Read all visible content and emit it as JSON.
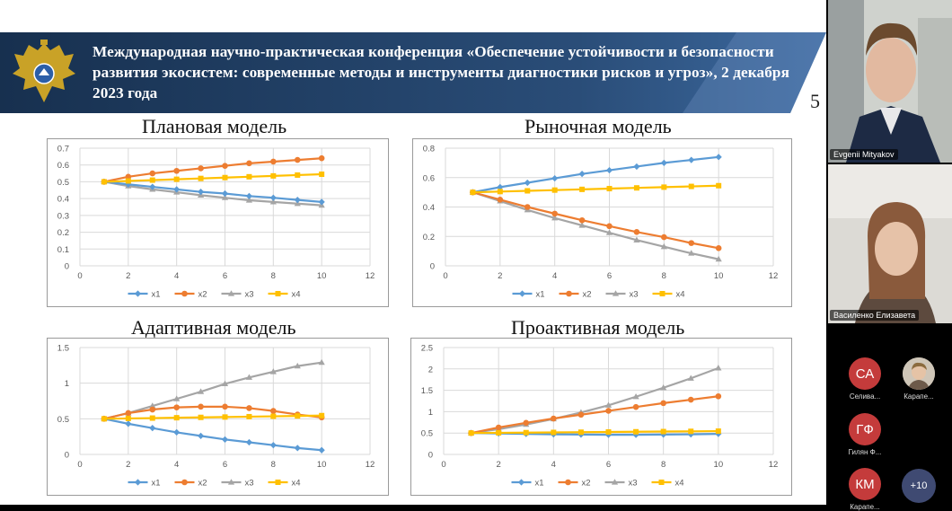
{
  "slide": {
    "title": "Международная научно-практическая конференция «Обеспечение устойчивости и безопасности развития экосистем: современные методы и инструменты диагностики рисков и угроз», 2 декабря 2023 года",
    "page_number": "5",
    "logo_icon": "double-headed-eagle-emblem",
    "colors": {
      "banner": "#1f3a5f",
      "x1": "#5b9bd5",
      "x2": "#ed7d31",
      "x3": "#a5a5a5",
      "x4": "#ffc000"
    }
  },
  "chart_data": [
    {
      "type": "line",
      "title": "Плановая модель",
      "x": [
        1,
        2,
        3,
        4,
        5,
        6,
        7,
        8,
        9,
        10
      ],
      "xlim": [
        0,
        12
      ],
      "xticks": [
        0,
        2,
        4,
        6,
        8,
        10,
        12
      ],
      "ylim": [
        0,
        0.7
      ],
      "yticks": [
        0,
        0.1,
        0.2,
        0.3,
        0.4,
        0.5,
        0.6,
        0.7
      ],
      "ytick_labels": [
        "0",
        "0.1",
        "0.2",
        "0.3",
        "0.4",
        "0.5",
        "0.6",
        "0.7"
      ],
      "grid": true,
      "legend": "bottom",
      "series": [
        {
          "name": "x1",
          "marker": "diamond",
          "values": [
            0.5,
            0.485,
            0.47,
            0.455,
            0.44,
            0.43,
            0.415,
            0.405,
            0.392,
            0.38
          ]
        },
        {
          "name": "x2",
          "marker": "circle",
          "values": [
            0.5,
            0.53,
            0.55,
            0.565,
            0.58,
            0.595,
            0.61,
            0.62,
            0.63,
            0.64
          ]
        },
        {
          "name": "x3",
          "marker": "triangle",
          "values": [
            0.5,
            0.475,
            0.455,
            0.438,
            0.42,
            0.405,
            0.39,
            0.38,
            0.37,
            0.36
          ]
        },
        {
          "name": "x4",
          "marker": "square",
          "values": [
            0.5,
            0.505,
            0.51,
            0.515,
            0.52,
            0.525,
            0.53,
            0.535,
            0.54,
            0.545
          ]
        }
      ]
    },
    {
      "type": "line",
      "title": "Рыночная модель",
      "x": [
        1,
        2,
        3,
        4,
        5,
        6,
        7,
        8,
        9,
        10
      ],
      "xlim": [
        0,
        12
      ],
      "xticks": [
        0,
        2,
        4,
        6,
        8,
        10,
        12
      ],
      "ylim": [
        0,
        0.8
      ],
      "yticks": [
        0,
        0.2,
        0.4,
        0.6,
        0.8
      ],
      "ytick_labels": [
        "0",
        "0.2",
        "0.4",
        "0.6",
        "0.8"
      ],
      "grid": true,
      "legend": "bottom",
      "series": [
        {
          "name": "x1",
          "marker": "diamond",
          "values": [
            0.5,
            0.535,
            0.565,
            0.595,
            0.625,
            0.65,
            0.675,
            0.7,
            0.72,
            0.74
          ]
        },
        {
          "name": "x2",
          "marker": "circle",
          "values": [
            0.5,
            0.45,
            0.4,
            0.355,
            0.31,
            0.27,
            0.23,
            0.195,
            0.155,
            0.12
          ]
        },
        {
          "name": "x3",
          "marker": "triangle",
          "values": [
            0.5,
            0.44,
            0.38,
            0.325,
            0.275,
            0.225,
            0.175,
            0.13,
            0.085,
            0.045
          ]
        },
        {
          "name": "x4",
          "marker": "square",
          "values": [
            0.5,
            0.505,
            0.51,
            0.515,
            0.52,
            0.525,
            0.53,
            0.535,
            0.54,
            0.545
          ]
        }
      ]
    },
    {
      "type": "line",
      "title": "Адаптивная модель",
      "x": [
        1,
        2,
        3,
        4,
        5,
        6,
        7,
        8,
        9,
        10
      ],
      "xlim": [
        0,
        12
      ],
      "xticks": [
        0,
        2,
        4,
        6,
        8,
        10,
        12
      ],
      "ylim": [
        0,
        1.5
      ],
      "yticks": [
        0,
        0.5,
        1,
        1.5
      ],
      "ytick_labels": [
        "0",
        "0.5",
        "1",
        "1.5"
      ],
      "grid": true,
      "legend": "bottom",
      "series": [
        {
          "name": "x1",
          "marker": "diamond",
          "values": [
            0.5,
            0.43,
            0.37,
            0.31,
            0.26,
            0.21,
            0.17,
            0.13,
            0.09,
            0.06
          ]
        },
        {
          "name": "x2",
          "marker": "circle",
          "values": [
            0.5,
            0.58,
            0.63,
            0.66,
            0.67,
            0.67,
            0.65,
            0.61,
            0.56,
            0.52
          ]
        },
        {
          "name": "x3",
          "marker": "triangle",
          "values": [
            0.5,
            0.58,
            0.68,
            0.78,
            0.88,
            0.99,
            1.08,
            1.16,
            1.24,
            1.29
          ]
        },
        {
          "name": "x4",
          "marker": "square",
          "values": [
            0.5,
            0.505,
            0.51,
            0.515,
            0.52,
            0.525,
            0.53,
            0.535,
            0.54,
            0.545
          ]
        }
      ]
    },
    {
      "type": "line",
      "title": "Проактивная модель",
      "x": [
        1,
        2,
        3,
        4,
        5,
        6,
        7,
        8,
        9,
        10
      ],
      "xlim": [
        0,
        12
      ],
      "xticks": [
        0,
        2,
        4,
        6,
        8,
        10,
        12
      ],
      "ylim": [
        0,
        2.5
      ],
      "yticks": [
        0,
        0.5,
        1,
        1.5,
        2,
        2.5
      ],
      "ytick_labels": [
        "0",
        "0.5",
        "1",
        "1.5",
        "2",
        "2.5"
      ],
      "grid": true,
      "legend": "bottom",
      "series": [
        {
          "name": "x1",
          "marker": "diamond",
          "values": [
            0.5,
            0.49,
            0.48,
            0.47,
            0.465,
            0.46,
            0.46,
            0.465,
            0.47,
            0.48
          ]
        },
        {
          "name": "x2",
          "marker": "circle",
          "values": [
            0.5,
            0.63,
            0.74,
            0.84,
            0.93,
            1.02,
            1.11,
            1.2,
            1.28,
            1.36
          ]
        },
        {
          "name": "x3",
          "marker": "triangle",
          "values": [
            0.5,
            0.59,
            0.7,
            0.83,
            0.98,
            1.15,
            1.35,
            1.56,
            1.78,
            2.02
          ]
        },
        {
          "name": "x4",
          "marker": "square",
          "values": [
            0.5,
            0.505,
            0.51,
            0.515,
            0.52,
            0.525,
            0.53,
            0.535,
            0.54,
            0.545
          ]
        }
      ]
    }
  ],
  "participants": {
    "video_tiles": [
      {
        "name": "Evgenii Mityakov"
      },
      {
        "name": "Василенко Елизавета"
      }
    ],
    "list": [
      {
        "initials": "СА",
        "name": "Селива...",
        "color": "#c43b3b"
      },
      {
        "initials": "",
        "name": "Карапе...",
        "color": "#cfc6b8"
      },
      {
        "initials": "ГФ",
        "name": "Гилян Ф...",
        "color": "#c43b3b"
      },
      {
        "initials": "КМ",
        "name": "Карапе...",
        "color": "#c43b3b"
      }
    ],
    "more_label": "+10"
  }
}
